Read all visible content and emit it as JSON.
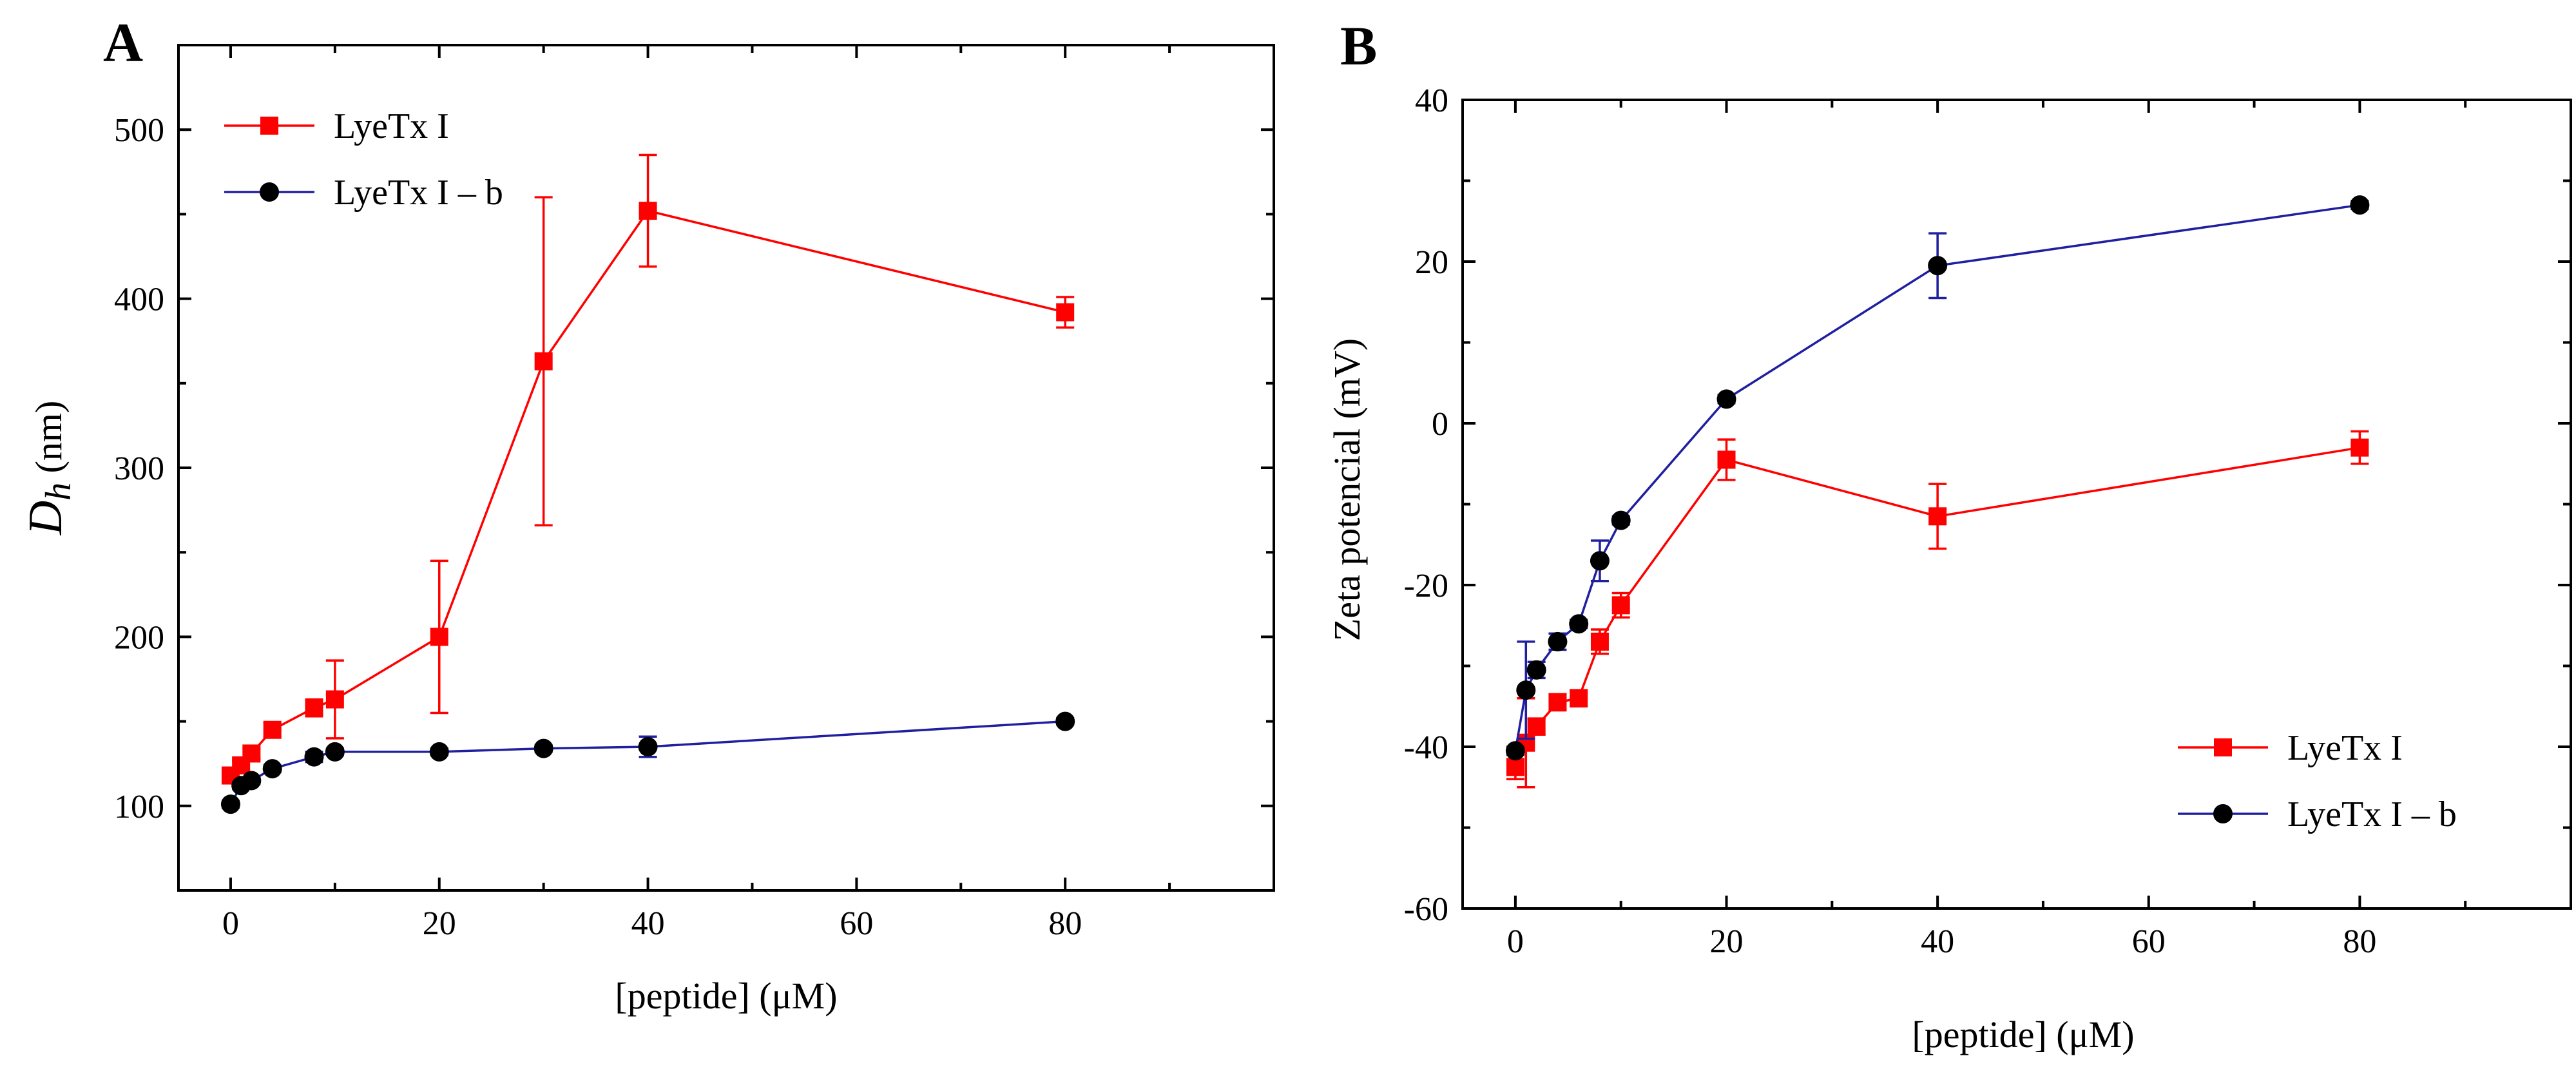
{
  "chart_data": [
    {
      "panel": "A",
      "type": "line",
      "xlabel": "[peptide] (μM)",
      "ylabel_main": "D",
      "ylabel_sub": "h",
      "ylabel_units": " (nm)",
      "xlim": [
        -5,
        100
      ],
      "ylim": [
        50,
        550
      ],
      "xticks": [
        0,
        20,
        40,
        60,
        80
      ],
      "yticks": [
        100,
        200,
        300,
        400,
        500
      ],
      "legend_position": "top-left",
      "series": [
        {
          "name": "LyeTx I",
          "color": "#ff0000",
          "marker": "square",
          "x": [
            0,
            1,
            2,
            4,
            8,
            10,
            20,
            30,
            40,
            80
          ],
          "y": [
            118,
            124,
            131,
            145,
            158,
            163,
            200,
            363,
            452,
            392
          ],
          "err": [
            3,
            3,
            3,
            4,
            5,
            23,
            45,
            97,
            33,
            9
          ]
        },
        {
          "name": "LyeTx I – b",
          "color": "#1f1fa0",
          "marker": "circle",
          "x": [
            0,
            1,
            2,
            4,
            8,
            10,
            20,
            30,
            40,
            80
          ],
          "y": [
            101,
            112,
            115,
            122,
            129,
            132,
            132,
            134,
            135,
            150
          ],
          "err": [
            2,
            2,
            2,
            2,
            3,
            2,
            2,
            2,
            6,
            2
          ]
        }
      ]
    },
    {
      "panel": "B",
      "type": "line",
      "xlabel": "[peptide] (μM)",
      "ylabel": "Zeta potencial (mV)",
      "xlim": [
        -5,
        100
      ],
      "ylim": [
        -60,
        40
      ],
      "xticks": [
        0,
        20,
        40,
        60,
        80
      ],
      "yticks": [
        -60,
        -40,
        -20,
        0,
        20,
        40
      ],
      "legend_position": "bottom-right",
      "series": [
        {
          "name": "LyeTx I",
          "color": "#ff0000",
          "marker": "square",
          "x": [
            0,
            1,
            2,
            4,
            6,
            8,
            10,
            20,
            40,
            80
          ],
          "y": [
            -42.5,
            -39.5,
            -37.5,
            -34.5,
            -34,
            -27,
            -22.5,
            -4.5,
            -11.5,
            -3
          ],
          "err": [
            1.5,
            5.5,
            1,
            1,
            1,
            1.5,
            1.5,
            2.5,
            4,
            2
          ]
        },
        {
          "name": "LyeTx I – b",
          "color": "#1f1fa0",
          "marker": "circle",
          "x": [
            0,
            1,
            2,
            4,
            6,
            8,
            10,
            20,
            40,
            80
          ],
          "y": [
            -40.5,
            -33,
            -30.5,
            -27,
            -24.8,
            -17,
            -12,
            3,
            19.5,
            27
          ],
          "err": [
            0.5,
            6,
            1,
            1,
            0.5,
            2.5,
            0.5,
            0.5,
            4,
            0.5
          ]
        }
      ]
    }
  ]
}
